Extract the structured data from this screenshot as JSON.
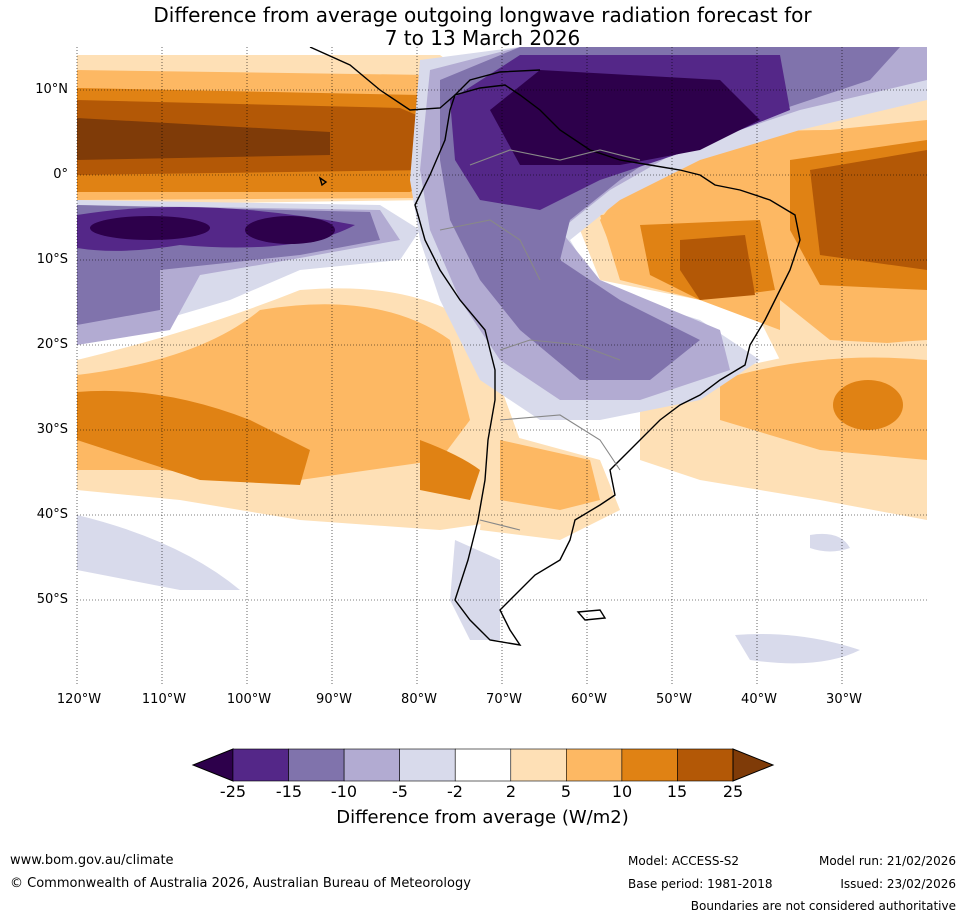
{
  "title": {
    "line1": "Difference from average outgoing longwave radiation forecast for",
    "line2": "7 to 13 March 2026"
  },
  "map": {
    "lat_labels": [
      "10°N",
      "0°",
      "10°S",
      "20°S",
      "30°S",
      "40°S",
      "50°S"
    ],
    "lon_labels": [
      "120°W",
      "110°W",
      "100°W",
      "90°W",
      "80°W",
      "70°W",
      "60°W",
      "50°W",
      "40°W",
      "30°W"
    ],
    "extent": {
      "lon_min": -120,
      "lon_max": -20,
      "lat_min": -60,
      "lat_max": 15
    }
  },
  "colorbar": {
    "boundaries": [
      "-25",
      "-15",
      "-10",
      "-5",
      "-2",
      "2",
      "5",
      "10",
      "15",
      "25"
    ],
    "colors": [
      "#2d004b",
      "#542788",
      "#8073ac",
      "#b2abd2",
      "#d8daeb",
      "#ffffff",
      "#fee0b6",
      "#fdb863",
      "#e08214",
      "#b35806",
      "#7f3b08"
    ],
    "title": "Difference from average (W/m2)"
  },
  "footer": {
    "website": "www.bom.gov.au/climate",
    "copyright": "© Commonwealth of Australia 2026, Australian Bureau of Meteorology",
    "model": "Model: ACCESS-S2",
    "base_period": "Base period: 1981-2018",
    "model_run": "Model run: 21/02/2026",
    "issued": "Issued: 23/02/2026",
    "disclaimer": "Boundaries are not considered authoritative"
  }
}
